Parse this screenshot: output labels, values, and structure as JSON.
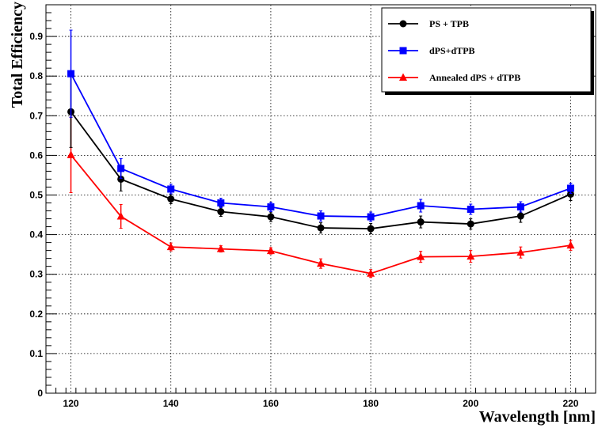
{
  "chart_data": {
    "type": "line",
    "xlabel": "Wavelength [nm]",
    "ylabel": "Total Efficiency",
    "xlim": [
      115,
      225
    ],
    "ylim": [
      0,
      0.98
    ],
    "x_ticks": [
      120,
      140,
      160,
      180,
      200,
      220
    ],
    "y_ticks": [
      0,
      0.1,
      0.2,
      0.3,
      0.4,
      0.5,
      0.6,
      0.7,
      0.8,
      0.9
    ],
    "grid": true,
    "legend_position": "top-right",
    "x": [
      120,
      130,
      140,
      150,
      160,
      170,
      180,
      190,
      200,
      210,
      220
    ],
    "series": [
      {
        "name": "PS + TPB",
        "color": "#000000",
        "marker": "circle",
        "values": [
          0.71,
          0.54,
          0.49,
          0.458,
          0.445,
          0.417,
          0.415,
          0.432,
          0.427,
          0.447,
          0.502
        ],
        "errors": [
          0.09,
          0.03,
          0.012,
          0.012,
          0.012,
          0.013,
          0.013,
          0.015,
          0.013,
          0.016,
          0.016
        ]
      },
      {
        "name": "dPS+dTPB",
        "color": "#0000ff",
        "marker": "square",
        "values": [
          0.806,
          0.567,
          0.515,
          0.48,
          0.47,
          0.447,
          0.445,
          0.473,
          0.464,
          0.47,
          0.517
        ],
        "errors": [
          0.11,
          0.025,
          0.012,
          0.012,
          0.012,
          0.013,
          0.012,
          0.016,
          0.013,
          0.013,
          0.013
        ]
      },
      {
        "name": "Annealed dPS + dTPB",
        "color": "#ff0000",
        "marker": "triangle",
        "values": [
          0.601,
          0.446,
          0.369,
          0.364,
          0.359,
          0.327,
          0.302,
          0.344,
          0.345,
          0.355,
          0.373
        ],
        "errors": [
          0.095,
          0.03,
          0.01,
          0.008,
          0.008,
          0.012,
          0.01,
          0.014,
          0.015,
          0.014,
          0.013
        ]
      }
    ]
  }
}
